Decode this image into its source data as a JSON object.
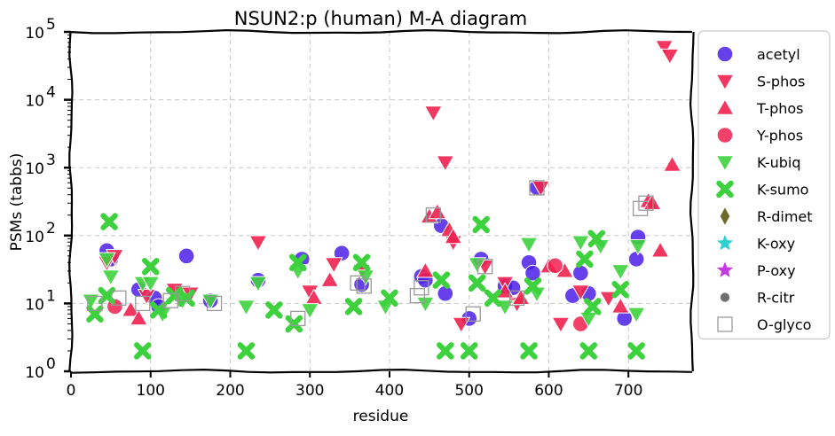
{
  "chart_data": {
    "type": "scatter",
    "title": "NSUN2:p (human) M-A diagram",
    "xlabel": "residue",
    "ylabel": "PSMs (tabbs)",
    "xlim": [
      0,
      780
    ],
    "ylim": [
      1,
      100000
    ],
    "yscale": "log",
    "xticks": [
      "0",
      "100",
      "200",
      "300",
      "400",
      "500",
      "600",
      "700"
    ],
    "yticks": [
      {
        "base": "10",
        "exp": "0"
      },
      {
        "base": "10",
        "exp": "1"
      },
      {
        "base": "10",
        "exp": "2"
      },
      {
        "base": "10",
        "exp": "3"
      },
      {
        "base": "10",
        "exp": "4"
      },
      {
        "base": "10",
        "exp": "5"
      }
    ],
    "grid": true,
    "legend_position": "outside-right",
    "series": [
      {
        "name": "acetyl",
        "marker": "circle",
        "color": "#4a1ee8",
        "points": [
          [
            45,
            60
          ],
          [
            50,
            45
          ],
          [
            85,
            16
          ],
          [
            105,
            12
          ],
          [
            110,
            9
          ],
          [
            145,
            50
          ],
          [
            175,
            11
          ],
          [
            235,
            22
          ],
          [
            290,
            45
          ],
          [
            340,
            55
          ],
          [
            365,
            19
          ],
          [
            440,
            25
          ],
          [
            445,
            22
          ],
          [
            465,
            140
          ],
          [
            470,
            14
          ],
          [
            500,
            6
          ],
          [
            515,
            45
          ],
          [
            545,
            18
          ],
          [
            555,
            17
          ],
          [
            575,
            40
          ],
          [
            580,
            28
          ],
          [
            585,
            510
          ],
          [
            630,
            13
          ],
          [
            640,
            28
          ],
          [
            650,
            14
          ],
          [
            695,
            6
          ],
          [
            710,
            45
          ],
          [
            712,
            95
          ]
        ]
      },
      {
        "name": "S-phos",
        "marker": "triangle-down",
        "color": "#f0204f",
        "points": [
          [
            45,
            40
          ],
          [
            55,
            50
          ],
          [
            95,
            13
          ],
          [
            130,
            16
          ],
          [
            150,
            14
          ],
          [
            235,
            80
          ],
          [
            300,
            15
          ],
          [
            330,
            38
          ],
          [
            365,
            30
          ],
          [
            455,
            6500
          ],
          [
            470,
            1200
          ],
          [
            480,
            80
          ],
          [
            490,
            5
          ],
          [
            520,
            35
          ],
          [
            545,
            20
          ],
          [
            560,
            10
          ],
          [
            590,
            510
          ],
          [
            615,
            5
          ],
          [
            640,
            15
          ],
          [
            675,
            12
          ],
          [
            745,
            60000
          ],
          [
            752,
            45000
          ]
        ]
      },
      {
        "name": "T-phos",
        "marker": "triangle-up",
        "color": "#f0204f",
        "points": [
          [
            75,
            8
          ],
          [
            85,
            6
          ],
          [
            305,
            12
          ],
          [
            325,
            22
          ],
          [
            445,
            30
          ],
          [
            450,
            190
          ],
          [
            460,
            220
          ],
          [
            475,
            120
          ],
          [
            480,
            95
          ],
          [
            545,
            15
          ],
          [
            565,
            12
          ],
          [
            600,
            35
          ],
          [
            620,
            30
          ],
          [
            690,
            9
          ],
          [
            725,
            320
          ],
          [
            730,
            300
          ],
          [
            740,
            60
          ],
          [
            755,
            1100
          ]
        ]
      },
      {
        "name": "Y-phos",
        "marker": "circle",
        "color": "#f0204f",
        "points": [
          [
            55,
            9
          ],
          [
            640,
            5
          ],
          [
            608,
            36
          ]
        ]
      },
      {
        "name": "K-ubiq",
        "marker": "triangle-down",
        "color": "#3dd13d",
        "points": [
          [
            25,
            11
          ],
          [
            45,
            45
          ],
          [
            50,
            25
          ],
          [
            90,
            20
          ],
          [
            100,
            20
          ],
          [
            115,
            7
          ],
          [
            140,
            11
          ],
          [
            175,
            11
          ],
          [
            220,
            9
          ],
          [
            235,
            20
          ],
          [
            285,
            30
          ],
          [
            300,
            8
          ],
          [
            370,
            25
          ],
          [
            395,
            9
          ],
          [
            445,
            10
          ],
          [
            510,
            38
          ],
          [
            545,
            9
          ],
          [
            575,
            75
          ],
          [
            585,
            14
          ],
          [
            640,
            80
          ],
          [
            650,
            6
          ],
          [
            665,
            70
          ],
          [
            690,
            30
          ],
          [
            710,
            7
          ],
          [
            712,
            70
          ]
        ]
      },
      {
        "name": "K-sumo",
        "marker": "x",
        "color": "#3dd13d",
        "points": [
          [
            30,
            7
          ],
          [
            45,
            13
          ],
          [
            48,
            160
          ],
          [
            90,
            2
          ],
          [
            100,
            35
          ],
          [
            110,
            8
          ],
          [
            130,
            13
          ],
          [
            145,
            12
          ],
          [
            220,
            2
          ],
          [
            255,
            8
          ],
          [
            280,
            5
          ],
          [
            285,
            40
          ],
          [
            355,
            9
          ],
          [
            365,
            40
          ],
          [
            400,
            12
          ],
          [
            465,
            22
          ],
          [
            470,
            2
          ],
          [
            500,
            2
          ],
          [
            510,
            20
          ],
          [
            515,
            145
          ],
          [
            530,
            12
          ],
          [
            575,
            2
          ],
          [
            580,
            18
          ],
          [
            645,
            45
          ],
          [
            650,
            2
          ],
          [
            655,
            9
          ],
          [
            660,
            90
          ],
          [
            690,
            16
          ],
          [
            710,
            2
          ]
        ]
      },
      {
        "name": "R-dimet",
        "marker": "diamond",
        "color": "#6b6b2a",
        "points": []
      },
      {
        "name": "K-oxy",
        "marker": "star",
        "color": "#2fd0d0",
        "points": []
      },
      {
        "name": "P-oxy",
        "marker": "star",
        "color": "#c23ae0",
        "points": []
      },
      {
        "name": "R-citr",
        "marker": "small-circle",
        "color": "#6e6e6e",
        "points": []
      },
      {
        "name": "O-glyco",
        "marker": "square-open",
        "color": "#9a9a9a",
        "points": [
          [
            30,
            10
          ],
          [
            60,
            12
          ],
          [
            90,
            10
          ],
          [
            125,
            11
          ],
          [
            140,
            14
          ],
          [
            180,
            10
          ],
          [
            285,
            6
          ],
          [
            360,
            20
          ],
          [
            368,
            18
          ],
          [
            435,
            13
          ],
          [
            440,
            17
          ],
          [
            455,
            200
          ],
          [
            505,
            7
          ],
          [
            520,
            35
          ],
          [
            560,
            12
          ],
          [
            585,
            505
          ],
          [
            715,
            250
          ],
          [
            722,
            300
          ]
        ]
      }
    ]
  }
}
